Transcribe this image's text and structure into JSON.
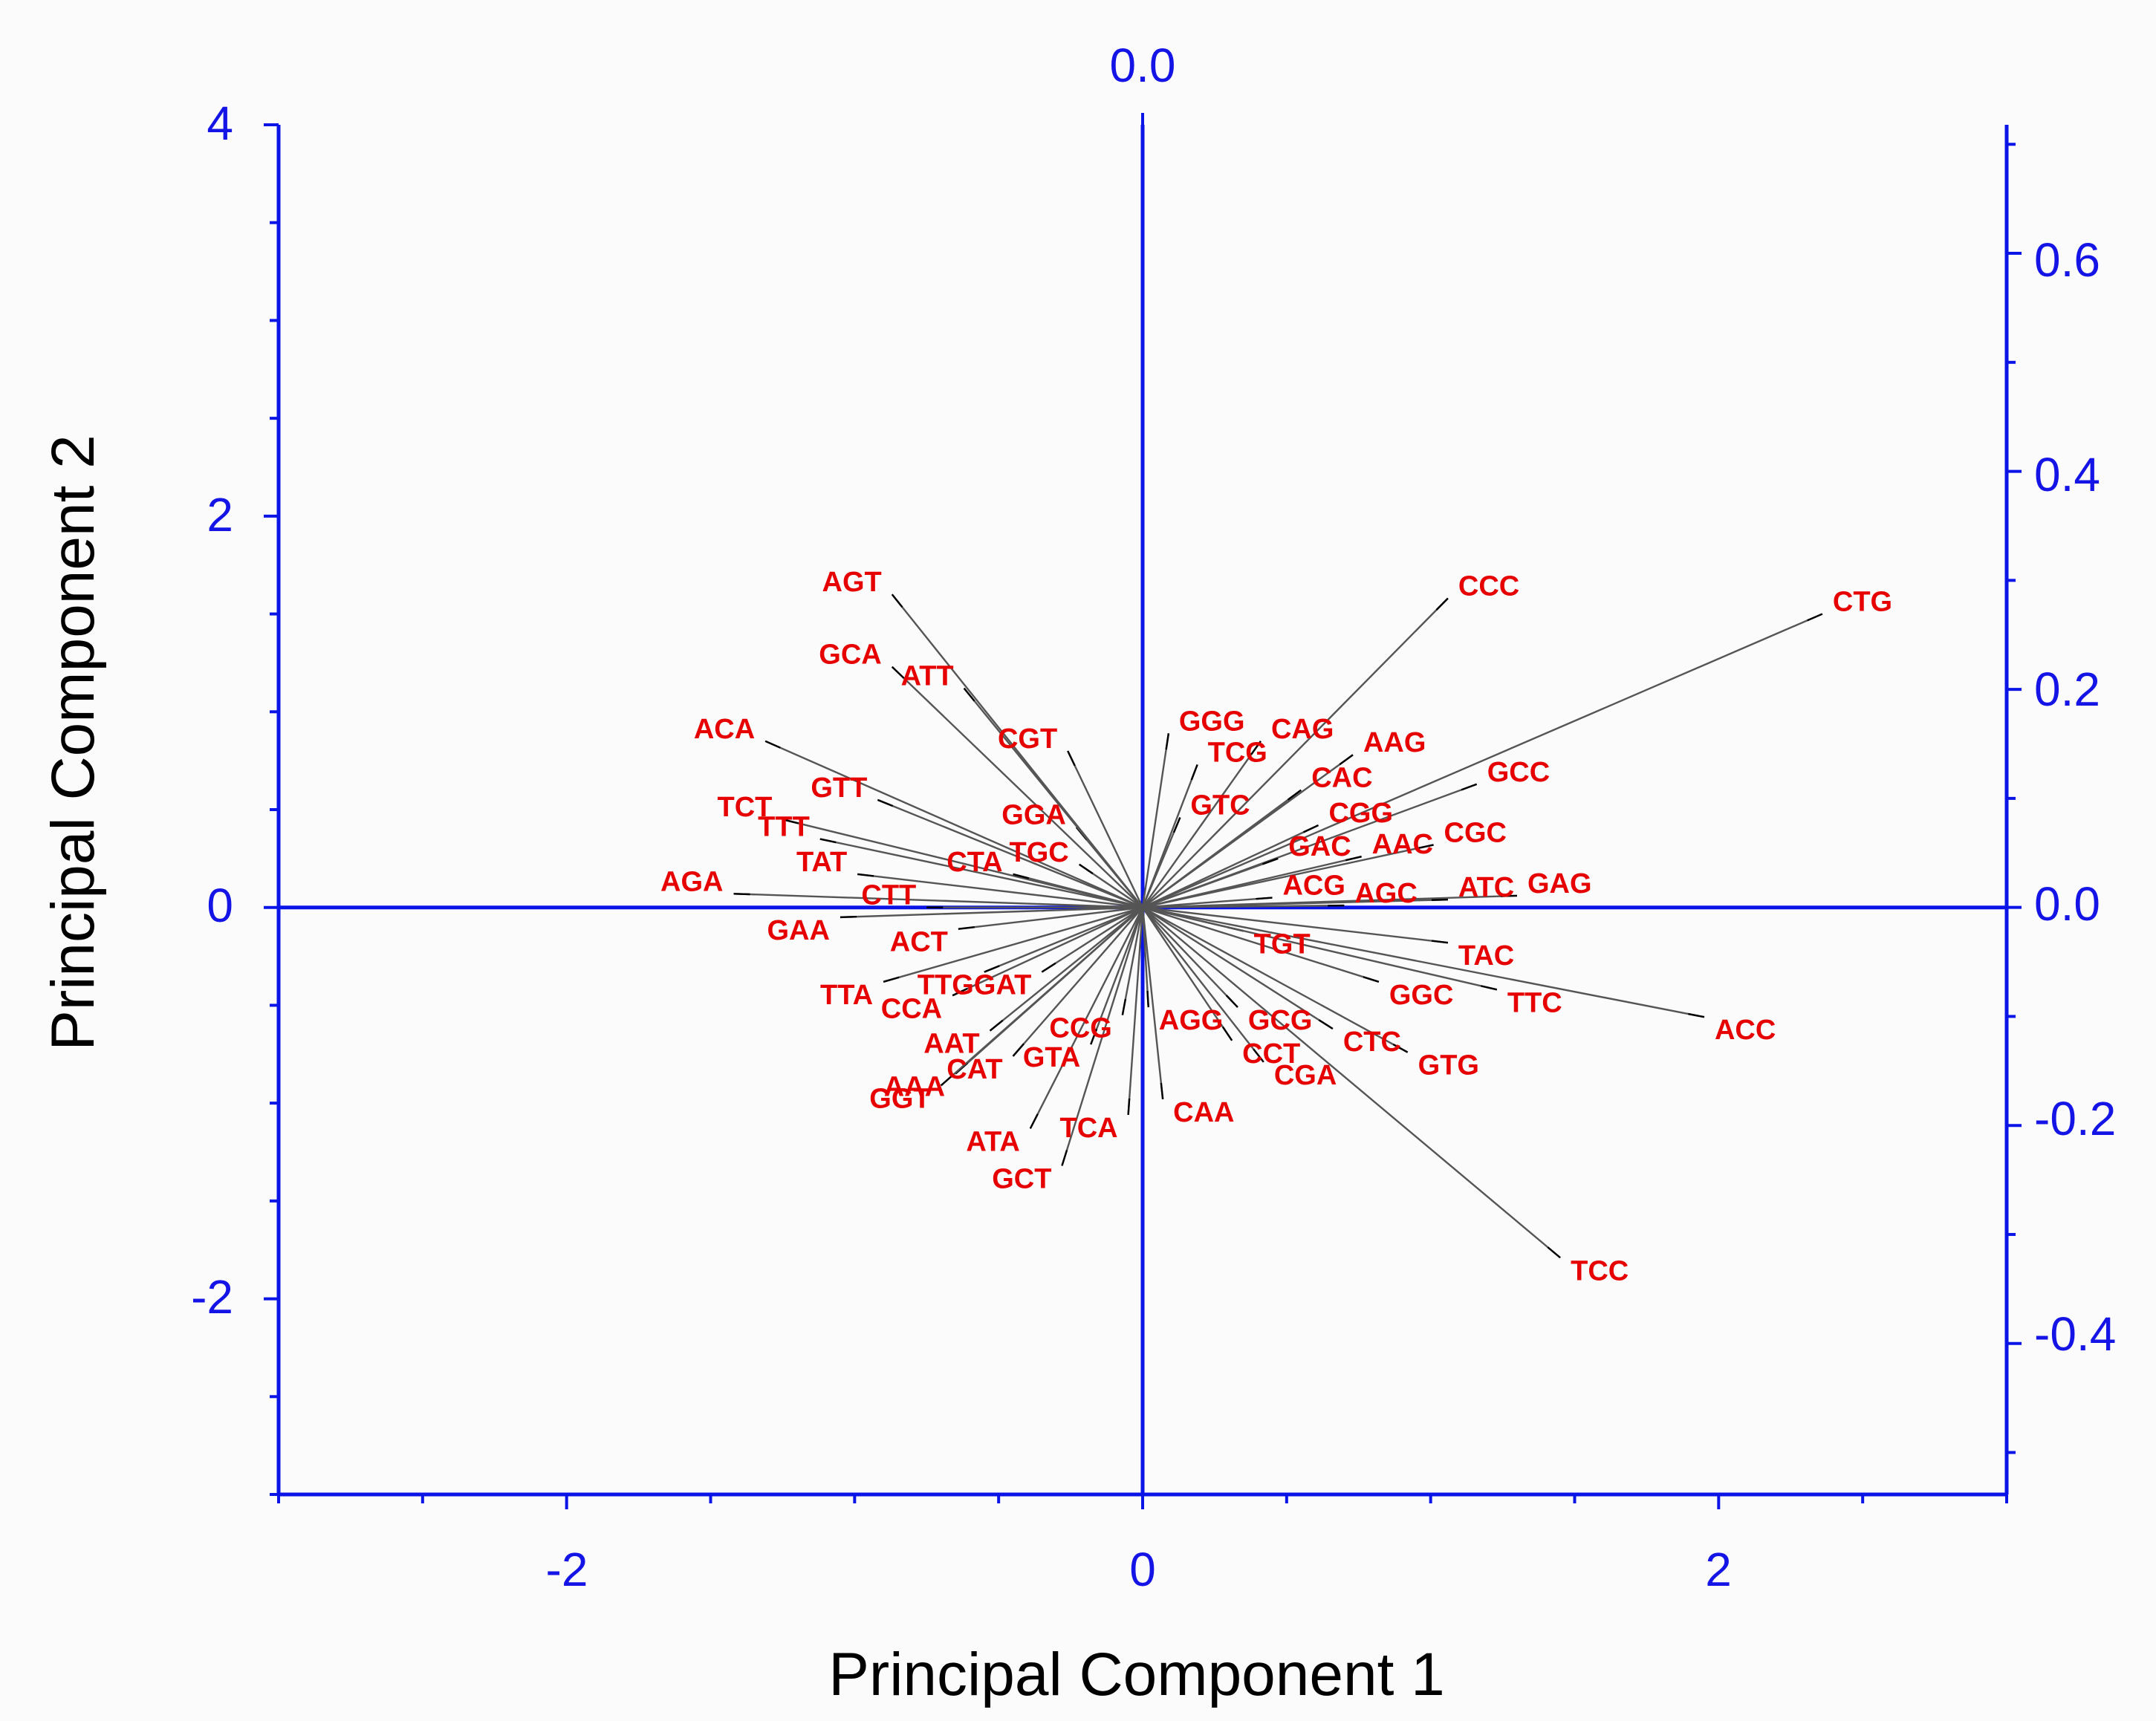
{
  "colors": {
    "axis": "#0a14e6",
    "label": "#e60000",
    "vector": "#555555",
    "background": "#fbfbfb"
  },
  "chart_data": {
    "type": "scatter",
    "subtype": "biplot-loading-vectors",
    "xlabel": "Principal Component 1",
    "ylabel": "Principal Component 2",
    "xlim": [
      -3,
      3
    ],
    "ylim": [
      -3,
      4
    ],
    "x_ticks": [
      -2,
      0,
      2
    ],
    "y_ticks": [
      -2,
      0,
      2,
      4
    ],
    "x_tick_labels": [
      "-2",
      "0",
      "2"
    ],
    "y_tick_labels": [
      "-2",
      "0",
      "2",
      "4"
    ],
    "top_axis": {
      "ticks": [
        0.0
      ],
      "tick_labels": [
        "0.0"
      ]
    },
    "right_axis": {
      "ylim": [
        -0.5385,
        0.7179
      ],
      "ticks": [
        -0.4,
        -0.2,
        0.0,
        0.2,
        0.4,
        0.6
      ],
      "tick_labels": [
        "-0.4",
        "-0.2",
        "0.0",
        "0.2",
        "0.4",
        "0.6"
      ]
    },
    "points": [
      {
        "label": "CTG",
        "x": 2.36,
        "y": 1.5
      },
      {
        "label": "CCC",
        "x": 1.06,
        "y": 1.58
      },
      {
        "label": "AAG",
        "x": 0.73,
        "y": 0.78
      },
      {
        "label": "CAG",
        "x": 0.41,
        "y": 0.85
      },
      {
        "label": "TCG",
        "x": 0.19,
        "y": 0.73
      },
      {
        "label": "GGG",
        "x": 0.09,
        "y": 0.89
      },
      {
        "label": "CAC",
        "x": 0.55,
        "y": 0.6
      },
      {
        "label": "GCC",
        "x": 1.16,
        "y": 0.63
      },
      {
        "label": "CGG",
        "x": 0.61,
        "y": 0.42
      },
      {
        "label": "CGC",
        "x": 1.01,
        "y": 0.32
      },
      {
        "label": "AAC",
        "x": 0.76,
        "y": 0.26
      },
      {
        "label": "GAC",
        "x": 0.47,
        "y": 0.25
      },
      {
        "label": "GTC",
        "x": 0.13,
        "y": 0.46
      },
      {
        "label": "GAG",
        "x": 1.3,
        "y": 0.06
      },
      {
        "label": "ATC",
        "x": 1.06,
        "y": 0.04
      },
      {
        "label": "ACG",
        "x": 0.45,
        "y": 0.05
      },
      {
        "label": "AGC",
        "x": 0.7,
        "y": 0.01
      },
      {
        "label": "TAC",
        "x": 1.06,
        "y": -0.18
      },
      {
        "label": "TGT",
        "x": 0.35,
        "y": -0.12
      },
      {
        "label": "TTC",
        "x": 1.23,
        "y": -0.42
      },
      {
        "label": "ACC",
        "x": 1.95,
        "y": -0.56
      },
      {
        "label": "GGC",
        "x": 0.82,
        "y": -0.38
      },
      {
        "label": "GCG",
        "x": 0.33,
        "y": -0.51
      },
      {
        "label": "CTC",
        "x": 0.66,
        "y": -0.62
      },
      {
        "label": "GTG",
        "x": 0.92,
        "y": -0.74
      },
      {
        "label": "CGA",
        "x": 0.42,
        "y": -0.79
      },
      {
        "label": "CCT",
        "x": 0.31,
        "y": -0.68
      },
      {
        "label": "CAA",
        "x": 0.07,
        "y": -0.98
      },
      {
        "label": "TCC",
        "x": 1.45,
        "y": -1.79
      },
      {
        "label": "TCA",
        "x": -0.05,
        "y": -1.06
      },
      {
        "label": "GCT",
        "x": -0.28,
        "y": -1.32
      },
      {
        "label": "ATA",
        "x": -0.39,
        "y": -1.13
      },
      {
        "label": "GTA",
        "x": -0.18,
        "y": -0.7
      },
      {
        "label": "CCG",
        "x": -0.07,
        "y": -0.55
      },
      {
        "label": "AGG",
        "x": 0.02,
        "y": -0.51
      },
      {
        "label": "CAT",
        "x": -0.45,
        "y": -0.76
      },
      {
        "label": "AAA",
        "x": -0.65,
        "y": -0.85
      },
      {
        "label": "AAT",
        "x": -0.53,
        "y": -0.63
      },
      {
        "label": "GGT",
        "x": -0.7,
        "y": -0.91
      },
      {
        "label": "GAT",
        "x": -0.35,
        "y": -0.33
      },
      {
        "label": "CCA",
        "x": -0.66,
        "y": -0.45
      },
      {
        "label": "TTG",
        "x": -0.55,
        "y": -0.33
      },
      {
        "label": "TTA",
        "x": -0.9,
        "y": -0.38
      },
      {
        "label": "ACT",
        "x": -0.64,
        "y": -0.11
      },
      {
        "label": "GAA",
        "x": -1.05,
        "y": -0.05
      },
      {
        "label": "AGA",
        "x": -1.42,
        "y": 0.07
      },
      {
        "label": "CTT",
        "x": -0.75,
        "y": 0.0
      },
      {
        "label": "TTT",
        "x": -1.12,
        "y": 0.35
      },
      {
        "label": "TCT",
        "x": -1.25,
        "y": 0.45
      },
      {
        "label": "TAT",
        "x": -0.99,
        "y": 0.17
      },
      {
        "label": "CTA",
        "x": -0.45,
        "y": 0.17
      },
      {
        "label": "TGC",
        "x": -0.22,
        "y": 0.22
      },
      {
        "label": "GGA",
        "x": -0.23,
        "y": 0.41
      },
      {
        "label": "GTT",
        "x": -0.92,
        "y": 0.55
      },
      {
        "label": "ACA",
        "x": -1.31,
        "y": 0.85
      },
      {
        "label": "GCA",
        "x": -0.87,
        "y": 1.23
      },
      {
        "label": "ATT",
        "x": -0.62,
        "y": 1.12
      },
      {
        "label": "CGT",
        "x": -0.26,
        "y": 0.8
      },
      {
        "label": "AGT",
        "x": -0.87,
        "y": 1.6
      }
    ]
  }
}
